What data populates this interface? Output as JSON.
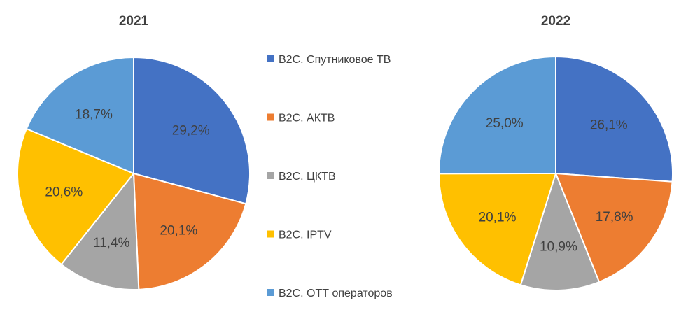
{
  "legend": {
    "items": [
      {
        "label": "B2C. Спутниковое ТВ",
        "color": "#4472C4"
      },
      {
        "label": "B2C. АКТВ",
        "color": "#ED7D31"
      },
      {
        "label": "B2C. ЦКТВ",
        "color": "#A5A5A5"
      },
      {
        "label": "B2C. IPTV",
        "color": "#FFC000"
      },
      {
        "label": "B2C. ОТТ операторов",
        "color": "#5B9BD5"
      }
    ]
  },
  "chart_data": [
    {
      "type": "pie",
      "title": "2021",
      "categories": [
        "B2C. Спутниковое ТВ",
        "B2C. АКТВ",
        "B2C. ЦКТВ",
        "B2C. IPTV",
        "B2C. ОТТ операторов"
      ],
      "values": [
        29.2,
        20.1,
        11.4,
        20.6,
        18.7
      ],
      "labels": [
        "29,2%",
        "20,1%",
        "11,4%",
        "20,6%",
        "18,7%"
      ],
      "colors": [
        "#4472C4",
        "#ED7D31",
        "#A5A5A5",
        "#FFC000",
        "#5B9BD5"
      ],
      "legend_position": "center"
    },
    {
      "type": "pie",
      "title": "2022",
      "categories": [
        "B2C. Спутниковое ТВ",
        "B2C. АКТВ",
        "B2C. ЦКТВ",
        "B2C. IPTV",
        "B2C. ОТТ операторов"
      ],
      "values": [
        26.1,
        17.8,
        10.9,
        20.1,
        25.0
      ],
      "labels": [
        "26,1%",
        "17,8%",
        "10,9%",
        "20,1%",
        "25,0%"
      ],
      "colors": [
        "#4472C4",
        "#ED7D31",
        "#A5A5A5",
        "#FFC000",
        "#5B9BD5"
      ],
      "legend_position": "center"
    }
  ]
}
